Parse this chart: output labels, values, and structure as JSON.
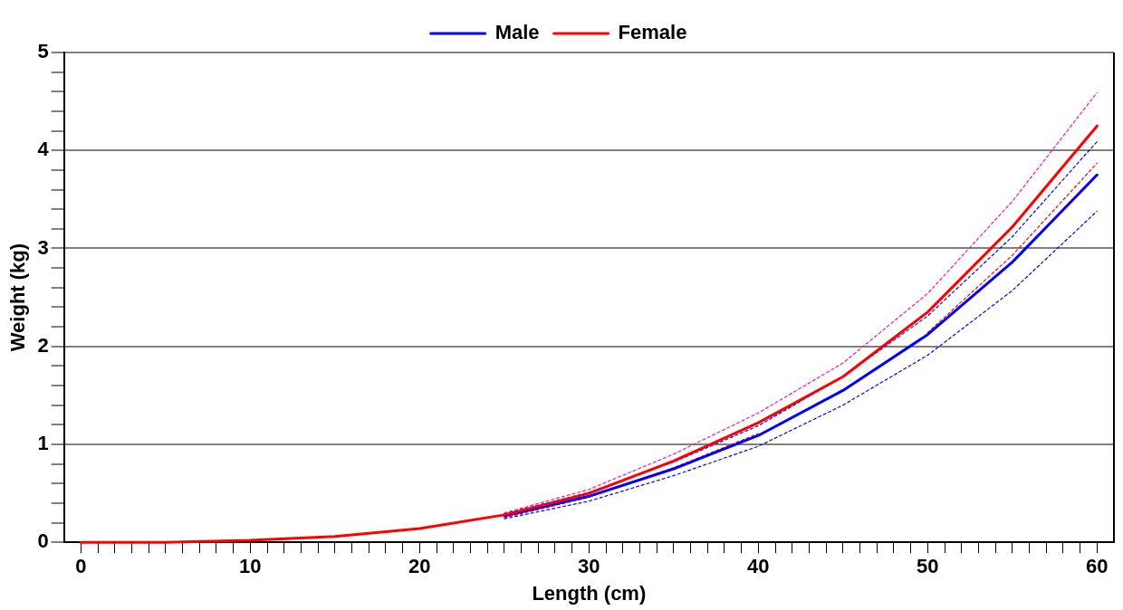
{
  "chart_data": {
    "type": "line",
    "xlabel": "Length (cm)",
    "ylabel": "Weight (kg)",
    "x": [
      0,
      5,
      10,
      15,
      20,
      25,
      30,
      35,
      40,
      45,
      50,
      55,
      60
    ],
    "series": [
      {
        "name": "Male",
        "color": "#0000ff",
        "values": [
          null,
          null,
          null,
          null,
          null,
          0.27,
          0.47,
          0.75,
          1.09,
          1.55,
          2.12,
          2.86,
          3.75
        ]
      },
      {
        "color": "#0000ff",
        "line_style": "dotted",
        "values": [
          null,
          null,
          null,
          null,
          null,
          0.24,
          0.42,
          0.68,
          0.98,
          1.4,
          1.91,
          2.57,
          3.38
        ]
      },
      {
        "color": "#0000ff",
        "line_style": "dotted",
        "values": [
          null,
          null,
          null,
          null,
          null,
          0.29,
          0.51,
          0.82,
          1.19,
          1.69,
          2.31,
          3.12,
          4.09
        ]
      },
      {
        "name": "Female",
        "color": "#ff0000",
        "values": [
          0,
          0,
          0.02,
          0.06,
          0.14,
          0.28,
          0.5,
          0.83,
          1.22,
          1.69,
          2.35,
          3.22,
          4.25
        ]
      },
      {
        "color": "#ff0000",
        "line_style": "dotted",
        "values": [
          null,
          null,
          null,
          null,
          null,
          0.25,
          0.46,
          0.76,
          1.11,
          null,
          2.14,
          2.93,
          3.87
        ]
      },
      {
        "color": "#ff1493",
        "line_style": "dotted",
        "values": [
          null,
          null,
          null,
          null,
          null,
          0.3,
          0.54,
          0.9,
          1.32,
          1.83,
          2.54,
          3.48,
          4.59
        ]
      }
    ],
    "xlim": [
      -1,
      61
    ],
    "ylim": [
      0,
      5
    ],
    "xticks": [
      0,
      {
        "value": 1,
        "label": null
      },
      {
        "value": 2,
        "label": null
      },
      {
        "value": 3,
        "label": null
      },
      {
        "value": 4,
        "label": null
      },
      {
        "value": 5,
        "label": null
      },
      {
        "value": 6,
        "label": null
      },
      {
        "value": 7,
        "label": null
      },
      {
        "value": 8,
        "label": null
      },
      {
        "value": 9,
        "label": null
      },
      10,
      {
        "value": 11,
        "label": null
      },
      {
        "value": 12,
        "label": null
      },
      {
        "value": 13,
        "label": null
      },
      {
        "value": 14,
        "label": null
      },
      {
        "value": 15,
        "label": null
      },
      {
        "value": 16,
        "label": null
      },
      {
        "value": 17,
        "label": null
      },
      {
        "value": 18,
        "label": null
      },
      {
        "value": 19,
        "label": null
      },
      20,
      {
        "value": 21,
        "label": null
      },
      {
        "value": 22,
        "label": null
      },
      {
        "value": 23,
        "label": null
      },
      {
        "value": 24,
        "label": null
      },
      {
        "value": 25,
        "label": null
      },
      {
        "value": 26,
        "label": null
      },
      {
        "value": 27,
        "label": null
      },
      {
        "value": 28,
        "label": null
      },
      {
        "value": 29,
        "label": null
      },
      30,
      {
        "value": 31,
        "label": null
      },
      {
        "value": 32,
        "label": null
      },
      {
        "value": 33,
        "label": null
      },
      {
        "value": 34,
        "label": null
      },
      {
        "value": 35,
        "label": null
      },
      {
        "value": 36,
        "label": null
      },
      {
        "value": 37,
        "label": null
      },
      {
        "value": 38,
        "label": null
      },
      {
        "value": 39,
        "label": null
      },
      40,
      {
        "value": 41,
        "label": null
      },
      {
        "value": 42,
        "label": null
      },
      {
        "value": 43,
        "label": null
      },
      {
        "value": 44,
        "label": null
      },
      {
        "value": 45,
        "label": null
      },
      {
        "value": 46,
        "label": null
      },
      {
        "value": 47,
        "label": null
      },
      {
        "value": 48,
        "label": null
      },
      {
        "value": 49,
        "label": null
      },
      50,
      {
        "value": 51,
        "label": null
      },
      {
        "value": 52,
        "label": null
      },
      {
        "value": 53,
        "label": null
      },
      {
        "value": 54,
        "label": null
      },
      {
        "value": 55,
        "label": null
      },
      {
        "value": 56,
        "label": null
      },
      {
        "value": 57,
        "label": null
      },
      {
        "value": 58,
        "label": null
      },
      {
        "value": 59,
        "label": null
      },
      60
    ],
    "yticks": [
      0,
      {
        "value": 0.2,
        "label": null
      },
      {
        "value": 0.4,
        "label": null
      },
      {
        "value": 0.6,
        "label": null
      },
      {
        "value": 0.8,
        "label": null
      },
      1,
      {
        "value": 1.2,
        "label": null
      },
      {
        "value": 1.4,
        "label": null
      },
      {
        "value": 1.6,
        "label": null
      },
      {
        "value": 1.8,
        "label": null
      },
      2,
      {
        "value": 2.2,
        "label": null
      },
      {
        "value": 2.4,
        "label": null
      },
      {
        "value": 2.6,
        "label": null
      },
      {
        "value": 2.8,
        "label": null
      },
      3,
      {
        "value": 3.2,
        "label": null
      },
      {
        "value": 3.4,
        "label": null
      },
      {
        "value": 3.6,
        "label": null
      },
      {
        "value": 3.8,
        "label": null
      },
      4,
      {
        "value": 4.2,
        "label": null
      },
      {
        "value": 4.4,
        "label": null
      },
      {
        "value": 4.6,
        "label": null
      },
      {
        "value": 4.8,
        "label": null
      },
      5
    ],
    "grid": "y",
    "legend": "top",
    "marker": "none",
    "line_style": "solid"
  }
}
